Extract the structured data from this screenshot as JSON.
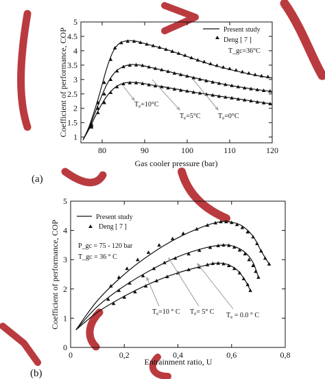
{
  "chart_data": [
    {
      "type": "line",
      "panel": "(a)",
      "xlabel": "Gas cooler pressure (bar)",
      "ylabel": "Coefficient of performance, COP",
      "xlim": [
        75,
        120
      ],
      "ylim": [
        0.8,
        5
      ],
      "xticks": [
        80,
        90,
        100,
        110,
        120
      ],
      "yticks": [
        1,
        1.5,
        2,
        2.5,
        3,
        3.5,
        4,
        4.5,
        5
      ],
      "legend": {
        "line": "Present study",
        "marker": "Deng [ 7 ]",
        "note": "T_gc=36°C"
      },
      "series": [
        {
          "name": "T_e=10°C",
          "label_main": "T",
          "label_sub": "e",
          "label_rest": "=10°C",
          "line": [
            [
              75.5,
              0.9
            ],
            [
              77,
              1.4
            ],
            [
              79,
              2.3
            ],
            [
              81,
              3.35
            ],
            [
              82.5,
              3.95
            ],
            [
              84,
              4.25
            ],
            [
              86,
              4.35
            ],
            [
              88,
              4.33
            ],
            [
              90,
              4.25
            ],
            [
              95,
              4.05
            ],
            [
              100,
              3.8
            ],
            [
              105,
              3.55
            ],
            [
              110,
              3.35
            ],
            [
              115,
              3.18
            ],
            [
              120,
              3.05
            ]
          ],
          "markers": [
            [
              77.5,
              1.45
            ],
            [
              79,
              2.2
            ],
            [
              80.5,
              2.9
            ],
            [
              82,
              3.7
            ],
            [
              83,
              4.1
            ],
            [
              84.5,
              4.28
            ],
            [
              86,
              4.33
            ],
            [
              87.5,
              4.33
            ],
            [
              89,
              4.29
            ],
            [
              90.5,
              4.23
            ],
            [
              92,
              4.18
            ],
            [
              93.5,
              4.12
            ],
            [
              95,
              4.05
            ],
            [
              96.5,
              3.98
            ],
            [
              98,
              3.91
            ],
            [
              99.5,
              3.84
            ],
            [
              101,
              3.76
            ],
            [
              102.5,
              3.68
            ],
            [
              104,
              3.62
            ],
            [
              105.5,
              3.55
            ],
            [
              107,
              3.49
            ],
            [
              108.5,
              3.43
            ],
            [
              110,
              3.38
            ],
            [
              111.5,
              3.33
            ],
            [
              113,
              3.27
            ],
            [
              114.5,
              3.22
            ],
            [
              116,
              3.17
            ],
            [
              117.5,
              3.13
            ],
            [
              119,
              3.1
            ]
          ]
        },
        {
          "name": "T_e=5°C",
          "label_main": "T",
          "label_sub": "e",
          "label_rest": "=5°C",
          "line": [
            [
              75.5,
              0.9
            ],
            [
              77,
              1.35
            ],
            [
              79,
              2.1
            ],
            [
              81,
              2.8
            ],
            [
              83,
              3.25
            ],
            [
              85,
              3.45
            ],
            [
              87,
              3.52
            ],
            [
              89,
              3.5
            ],
            [
              92,
              3.4
            ],
            [
              95,
              3.3
            ],
            [
              100,
              3.12
            ],
            [
              105,
              2.95
            ],
            [
              110,
              2.8
            ],
            [
              115,
              2.68
            ],
            [
              120,
              2.58
            ]
          ],
          "markers": [
            [
              77.5,
              1.4
            ],
            [
              79,
              2.0
            ],
            [
              80.5,
              2.5
            ],
            [
              82,
              3.0
            ],
            [
              83.5,
              3.3
            ],
            [
              85,
              3.45
            ],
            [
              86.5,
              3.5
            ],
            [
              88,
              3.51
            ],
            [
              89.5,
              3.49
            ],
            [
              91,
              3.44
            ],
            [
              92.5,
              3.39
            ],
            [
              94,
              3.34
            ],
            [
              95.5,
              3.28
            ],
            [
              97,
              3.22
            ],
            [
              98.5,
              3.17
            ],
            [
              100,
              3.12
            ],
            [
              101.5,
              3.06
            ],
            [
              103,
              3.01
            ],
            [
              104.5,
              2.96
            ],
            [
              106,
              2.91
            ],
            [
              107.5,
              2.87
            ],
            [
              109,
              2.83
            ],
            [
              110.5,
              2.79
            ],
            [
              112,
              2.75
            ],
            [
              113.5,
              2.71
            ],
            [
              115,
              2.68
            ],
            [
              116.5,
              2.65
            ],
            [
              118,
              2.62
            ],
            [
              119.5,
              2.6
            ]
          ]
        },
        {
          "name": "T_e=0°C",
          "label_main": "T",
          "label_sub": "e",
          "label_rest": "=0°C",
          "line": [
            [
              75.5,
              0.9
            ],
            [
              77,
              1.3
            ],
            [
              79,
              1.9
            ],
            [
              81,
              2.4
            ],
            [
              83,
              2.72
            ],
            [
              85,
              2.87
            ],
            [
              87,
              2.9
            ],
            [
              89,
              2.88
            ],
            [
              92,
              2.8
            ],
            [
              95,
              2.73
            ],
            [
              100,
              2.6
            ],
            [
              105,
              2.48
            ],
            [
              110,
              2.37
            ],
            [
              115,
              2.26
            ],
            [
              120,
              2.15
            ]
          ],
          "markers": [
            [
              77.5,
              1.35
            ],
            [
              79,
              1.85
            ],
            [
              80.5,
              2.2
            ],
            [
              82,
              2.55
            ],
            [
              83.5,
              2.75
            ],
            [
              85,
              2.85
            ],
            [
              86.5,
              2.89
            ],
            [
              88,
              2.89
            ],
            [
              89.5,
              2.86
            ],
            [
              91,
              2.82
            ],
            [
              92.5,
              2.78
            ],
            [
              94,
              2.75
            ],
            [
              95.5,
              2.71
            ],
            [
              97,
              2.67
            ],
            [
              98.5,
              2.63
            ],
            [
              100,
              2.6
            ],
            [
              101.5,
              2.56
            ],
            [
              103,
              2.53
            ],
            [
              104.5,
              2.49
            ],
            [
              106,
              2.46
            ],
            [
              107.5,
              2.42
            ],
            [
              109,
              2.39
            ],
            [
              110.5,
              2.36
            ],
            [
              112,
              2.32
            ],
            [
              113.5,
              2.29
            ],
            [
              115,
              2.26
            ],
            [
              116.5,
              2.22
            ],
            [
              118,
              2.19
            ],
            [
              119.5,
              2.16
            ]
          ]
        }
      ]
    },
    {
      "type": "line",
      "panel": "(b)",
      "xlabel": "Entrainment ratio, U",
      "ylabel": "Coefficient of performance, COP",
      "xlim": [
        0,
        0.8
      ],
      "ylim": [
        0,
        5
      ],
      "xticks": [
        "0",
        "0,2",
        "0,4",
        "0,6",
        "0,8"
      ],
      "yticks": [
        0,
        1,
        2,
        3,
        4,
        5
      ],
      "legend": {
        "line": "Present study",
        "marker": "Deng [ 7 ]",
        "note1": "P_gc = 75 - 120 bar",
        "note2": "T_gc = 36 ° C"
      },
      "series": [
        {
          "name": "T_e=10 ° C",
          "label_main": "T",
          "label_sub": "e",
          "label_rest": "=10 ° C",
          "line": [
            [
              0.02,
              0.6
            ],
            [
              0.1,
              1.6
            ],
            [
              0.2,
              2.5
            ],
            [
              0.3,
              3.2
            ],
            [
              0.4,
              3.75
            ],
            [
              0.5,
              4.15
            ],
            [
              0.56,
              4.3
            ],
            [
              0.6,
              4.28
            ],
            [
              0.64,
              4.15
            ],
            [
              0.68,
              3.8
            ],
            [
              0.71,
              3.3
            ],
            [
              0.74,
              2.85
            ]
          ],
          "markers": [
            [
              0.15,
              2.1
            ],
            [
              0.18,
              2.4
            ],
            [
              0.21,
              2.7
            ],
            [
              0.25,
              3.0
            ],
            [
              0.29,
              3.25
            ],
            [
              0.33,
              3.5
            ],
            [
              0.38,
              3.72
            ],
            [
              0.42,
              3.9
            ],
            [
              0.47,
              4.05
            ],
            [
              0.51,
              4.18
            ],
            [
              0.54,
              4.26
            ],
            [
              0.56,
              4.3
            ],
            [
              0.58,
              4.3
            ],
            [
              0.6,
              4.27
            ],
            [
              0.62,
              4.2
            ],
            [
              0.64,
              4.1
            ],
            [
              0.66,
              3.95
            ],
            [
              0.68,
              3.78
            ],
            [
              0.695,
              3.55
            ],
            [
              0.71,
              3.3
            ],
            [
              0.725,
              3.05
            ],
            [
              0.74,
              2.85
            ]
          ]
        },
        {
          "name": "T_e= 5° C",
          "label_main": "T",
          "label_sub": "e",
          "label_rest": "= 5° C",
          "line": [
            [
              0.02,
              0.6
            ],
            [
              0.1,
              1.4
            ],
            [
              0.2,
              2.1
            ],
            [
              0.3,
              2.65
            ],
            [
              0.4,
              3.1
            ],
            [
              0.5,
              3.4
            ],
            [
              0.57,
              3.5
            ],
            [
              0.61,
              3.45
            ],
            [
              0.65,
              3.25
            ],
            [
              0.68,
              2.9
            ],
            [
              0.7,
              2.4
            ]
          ],
          "markers": [
            [
              0.14,
              1.65
            ],
            [
              0.18,
              1.95
            ],
            [
              0.22,
              2.2
            ],
            [
              0.27,
              2.45
            ],
            [
              0.31,
              2.7
            ],
            [
              0.35,
              2.9
            ],
            [
              0.39,
              3.05
            ],
            [
              0.44,
              3.2
            ],
            [
              0.48,
              3.32
            ],
            [
              0.52,
              3.42
            ],
            [
              0.55,
              3.48
            ],
            [
              0.57,
              3.5
            ],
            [
              0.59,
              3.49
            ],
            [
              0.61,
              3.43
            ],
            [
              0.63,
              3.33
            ],
            [
              0.65,
              3.2
            ],
            [
              0.665,
              3.0
            ],
            [
              0.68,
              2.8
            ],
            [
              0.69,
              2.6
            ],
            [
              0.7,
              2.4
            ]
          ]
        },
        {
          "name": "T_e = 0.0 ° C",
          "label_main": "T",
          "label_sub": "e",
          "label_rest": " = 0.0 ° C",
          "line": [
            [
              0.02,
              0.6
            ],
            [
              0.1,
              1.2
            ],
            [
              0.2,
              1.75
            ],
            [
              0.3,
              2.2
            ],
            [
              0.4,
              2.55
            ],
            [
              0.5,
              2.8
            ],
            [
              0.54,
              2.88
            ],
            [
              0.58,
              2.85
            ],
            [
              0.62,
              2.65
            ],
            [
              0.65,
              2.3
            ],
            [
              0.67,
              1.95
            ]
          ],
          "markers": [
            [
              0.16,
              1.5
            ],
            [
              0.2,
              1.72
            ],
            [
              0.24,
              1.9
            ],
            [
              0.28,
              2.1
            ],
            [
              0.32,
              2.28
            ],
            [
              0.36,
              2.42
            ],
            [
              0.4,
              2.55
            ],
            [
              0.44,
              2.66
            ],
            [
              0.48,
              2.75
            ],
            [
              0.51,
              2.83
            ],
            [
              0.53,
              2.87
            ],
            [
              0.55,
              2.88
            ],
            [
              0.57,
              2.86
            ],
            [
              0.59,
              2.8
            ],
            [
              0.61,
              2.7
            ],
            [
              0.63,
              2.55
            ],
            [
              0.645,
              2.35
            ],
            [
              0.66,
              2.15
            ],
            [
              0.67,
              1.95
            ]
          ]
        }
      ]
    }
  ]
}
